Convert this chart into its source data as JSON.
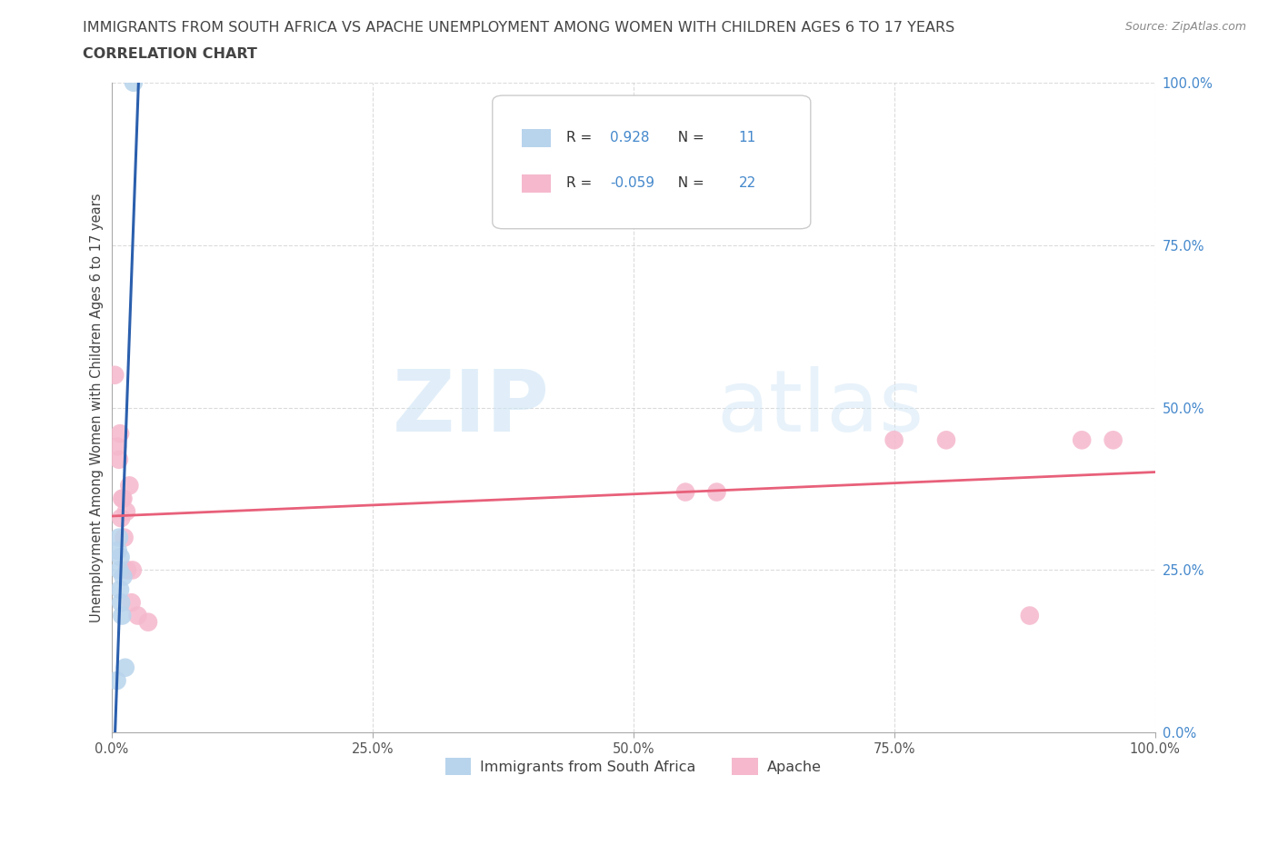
{
  "title_line1": "IMMIGRANTS FROM SOUTH AFRICA VS APACHE UNEMPLOYMENT AMONG WOMEN WITH CHILDREN AGES 6 TO 17 YEARS",
  "title_line2": "CORRELATION CHART",
  "source": "Source: ZipAtlas.com",
  "ylabel": "Unemployment Among Women with Children Ages 6 to 17 years",
  "watermark_zip": "ZIP",
  "watermark_atlas": "atlas",
  "blue_R": "0.928",
  "blue_N": "11",
  "pink_R": "-0.059",
  "pink_N": "22",
  "blue_color": "#b8d4ec",
  "blue_line_color": "#2b5fad",
  "pink_color": "#f5b8cc",
  "pink_line_color": "#e8607a",
  "blue_scatter_x": [
    0.5,
    0.6,
    0.7,
    0.75,
    0.8,
    0.85,
    0.9,
    1.0,
    1.1,
    1.3,
    2.1
  ],
  "blue_scatter_y": [
    8,
    28,
    30,
    25,
    22,
    27,
    20,
    18,
    24,
    10,
    100
  ],
  "pink_scatter_x": [
    0.3,
    0.55,
    0.7,
    0.8,
    0.9,
    1.0,
    1.1,
    1.2,
    1.4,
    1.5,
    1.7,
    1.9,
    2.0,
    2.5,
    3.5,
    55,
    58,
    75,
    80,
    88,
    93,
    96
  ],
  "pink_scatter_y": [
    55,
    44,
    42,
    46,
    33,
    36,
    36,
    30,
    34,
    25,
    38,
    20,
    25,
    18,
    17,
    37,
    37,
    45,
    45,
    18,
    45,
    45
  ],
  "xlim": [
    0,
    100
  ],
  "ylim": [
    0,
    100
  ],
  "xtick_positions": [
    0,
    25,
    50,
    75,
    100
  ],
  "ytick_positions": [
    0,
    25,
    50,
    75,
    100
  ],
  "xtick_labels": [
    "0.0%",
    "25.0%",
    "50.0%",
    "75.0%",
    "100.0%"
  ],
  "ytick_labels_right": [
    "0.0%",
    "25.0%",
    "50.0%",
    "75.0%",
    "100.0%"
  ],
  "legend_label_blue": "Immigrants from South Africa",
  "legend_label_pink": "Apache",
  "background_color": "#ffffff",
  "grid_color": "#cccccc",
  "axis_color": "#888888",
  "right_tick_color": "#4488cc",
  "title_color": "#444444",
  "source_color": "#888888"
}
